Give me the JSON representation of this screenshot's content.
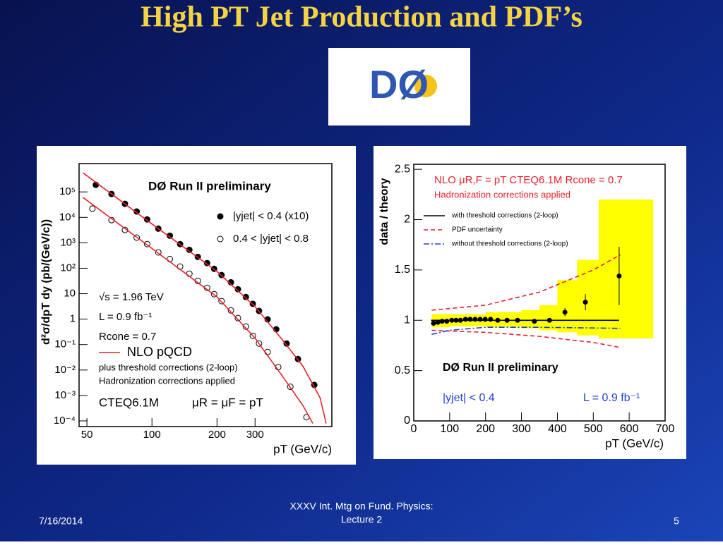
{
  "slide": {
    "title": "High PT Jet Production and PDF’s",
    "logo": "DØ",
    "footer_date": "7/16/2014",
    "footer_center": [
      "XXXV Int. Mtg on Fund. Physics:",
      "Lecture 2"
    ],
    "page_number": "5"
  },
  "chart_data": [
    {
      "type": "scatter",
      "xlabel": "pT (GeV/c)",
      "ylabel": "d²σ/dpT dy (pb/(GeV/c))",
      "xlog": true,
      "ylog": true,
      "xlim": [
        46,
        680
      ],
      "ylim": [
        6e-05,
        1300000
      ],
      "xticks": [
        50,
        100,
        200,
        300
      ],
      "yticks": [
        {
          "value": 0.0001,
          "label": "10⁻⁴"
        },
        {
          "value": 0.001,
          "label": "10⁻³"
        },
        {
          "value": 0.01,
          "label": "10⁻²"
        },
        {
          "value": 0.1,
          "label": "10⁻¹"
        },
        1,
        10,
        {
          "value": 100,
          "label": "10²"
        },
        {
          "value": 1000,
          "label": "10³"
        },
        {
          "value": 10000,
          "label": "10⁴"
        },
        {
          "value": 100000,
          "label": "10⁵"
        }
      ],
      "annotations": [
        "DØ Run II preliminary",
        "√s = 1.96 TeV",
        "L = 0.9 fb⁻¹",
        "Rcone = 0.7",
        "plus threshold corrections (2-loop)",
        "Hadronization corrections applied",
        "CTEQ6.1M",
        "μR = μF = pT"
      ],
      "series": [
        {
          "name": "|yjet| < 0.4 (x10)",
          "style": "filled",
          "color": "#000000",
          "x": [
            55,
            65,
            75,
            85,
            95,
            107,
            121,
            135,
            149,
            163,
            180,
            194,
            210,
            232,
            250,
            272,
            293,
            313,
            343,
            376,
            420,
            474,
            564
          ],
          "values": [
            190000,
            83000,
            34000,
            17000,
            8300,
            3600,
            1900,
            890,
            530,
            280,
            160,
            95,
            54,
            28,
            15,
            7.4,
            4.0,
            2.1,
            0.98,
            0.4,
            0.11,
            0.027,
            0.0026
          ]
        },
        {
          "name": "0.4 < |yjet| < 0.8",
          "style": "open",
          "color": "#000000",
          "x": [
            53,
            65,
            75,
            85,
            95,
            107,
            121,
            135,
            149,
            163,
            180,
            194,
            210,
            232,
            250,
            272,
            293,
            313,
            343,
            384,
            437,
            519
          ],
          "values": [
            22000,
            7800,
            3200,
            1600,
            890,
            420,
            230,
            116,
            61,
            32,
            17,
            9.6,
            5.1,
            2.2,
            1.1,
            0.51,
            0.22,
            0.11,
            0.051,
            0.013,
            0.0022,
            0.00014
          ]
        },
        {
          "name": "NLO pQCD",
          "style": "solid",
          "color": "#e8202a",
          "x": [
            48,
            100,
            200,
            300,
            400,
            500,
            600,
            640
          ],
          "values": [
            560000,
            5500,
            75,
            3.1,
            0.16,
            0.014,
            0.0008,
            8e-05
          ]
        },
        {
          "style": "solid",
          "color": "#e8202a",
          "x": [
            48,
            100,
            200,
            300,
            400,
            500,
            555
          ],
          "values": [
            60000,
            600,
            7.5,
            0.18,
            0.006,
            0.0004,
            8e-05
          ]
        }
      ]
    },
    {
      "type": "scatter",
      "xlabel": "pT (GeV/c)",
      "ylabel": "data / theory",
      "xlog": false,
      "ylog": false,
      "xlim": [
        0,
        700
      ],
      "ylim": [
        0,
        2.55
      ],
      "xticks": [
        0,
        100,
        200,
        300,
        400,
        500,
        600,
        700
      ],
      "yticks": [
        0,
        0.5,
        1,
        1.5,
        2,
        2.5
      ],
      "annotations": [
        "NLO μR,F = pT CTEQ6.1M Rcone = 0.7",
        "Hadronization corrections applied",
        "DØ Run II preliminary",
        "|yjet| < 0.4",
        "L = 0.9 fb⁻¹"
      ],
      "band": {
        "color": "#ffff00",
        "bins": [
          50,
          100,
          200,
          300,
          350,
          400,
          455,
          515,
          667
        ],
        "lower": [
          0.93,
          0.94,
          0.93,
          0.92,
          0.9,
          0.88,
          0.85,
          0.82
        ],
        "upper": [
          1.06,
          1.06,
          1.08,
          1.1,
          1.15,
          1.4,
          1.6,
          2.2
        ]
      },
      "series": [
        {
          "name": "with threshold corrections (2-loop)",
          "style": "solid",
          "color": "#000000",
          "x": [
            48,
            572
          ],
          "values": [
            1,
            1
          ]
        },
        {
          "name": "PDF uncertainty",
          "style": "dashed",
          "color": "#e8202a",
          "x": [
            50,
            200,
            350,
            500,
            575
          ],
          "values": [
            1.1,
            1.15,
            1.28,
            1.5,
            1.65
          ]
        },
        {
          "style": "dashed",
          "color": "#e8202a",
          "x": [
            50,
            200,
            350,
            500,
            575
          ],
          "values": [
            0.9,
            0.88,
            0.84,
            0.78,
            0.73
          ]
        },
        {
          "name": "without threshold corrections (2-loop)",
          "style": "dashdot",
          "color": "#1f3fd0",
          "x": [
            50,
            100,
            200,
            350,
            575
          ],
          "values": [
            0.86,
            0.9,
            0.93,
            0.93,
            0.92
          ]
        },
        {
          "style": "filled",
          "color": "#000000",
          "x": [
            55,
            67,
            79,
            92,
            106,
            118,
            130,
            144,
            157,
            171,
            185,
            199,
            214,
            234,
            260,
            289,
            336,
            378,
            421,
            478,
            572
          ],
          "values": [
            0.97,
            0.98,
            0.99,
            0.99,
            1.0,
            1.0,
            1.0,
            1.01,
            1.01,
            1.01,
            1.01,
            1.01,
            1.01,
            1.0,
            1.0,
            1.0,
            0.99,
            1.0,
            1.08,
            1.18,
            1.44
          ],
          "errors": [
            0.01,
            0.01,
            0.01,
            0.01,
            0.01,
            0.01,
            0.01,
            0.01,
            0.01,
            0.01,
            0.01,
            0.01,
            0.01,
            0.01,
            0.01,
            0.01,
            0.02,
            0.02,
            0.04,
            0.08,
            0.29
          ]
        }
      ]
    }
  ]
}
